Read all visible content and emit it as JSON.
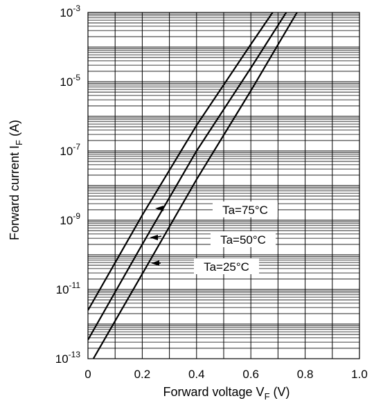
{
  "chart_data": {
    "type": "line",
    "title": "",
    "xlabel": "Forward voltage",
    "xlabel_symbol": "V",
    "xlabel_sub": "F",
    "xlabel_unit": "(V)",
    "ylabel": "Forward current",
    "ylabel_symbol": "I",
    "ylabel_sub": "F",
    "ylabel_unit": "(A)",
    "xlim": [
      0,
      1.0
    ],
    "ylim": [
      1e-13,
      0.001
    ],
    "yscale": "log",
    "grid": true,
    "x_ticks": [
      "0",
      "0.2",
      "0.4",
      "0.6",
      "0.8",
      "1.0"
    ],
    "y_ticks": [
      {
        "base": "10",
        "exp": "-3"
      },
      {
        "base": "10",
        "exp": "-5"
      },
      {
        "base": "10",
        "exp": "-7"
      },
      {
        "base": "10",
        "exp": "-9"
      },
      {
        "base": "10",
        "exp": "-11"
      },
      {
        "base": "10",
        "exp": "-13"
      }
    ],
    "series": [
      {
        "name": "Ta=75°C",
        "x": [
          0.0,
          0.2,
          0.4,
          0.6,
          0.68
        ],
        "y": [
          2.5e-12,
          1.4e-09,
          5.5e-07,
          0.00012,
          0.001
        ]
      },
      {
        "name": "Ta=50°C",
        "x": [
          0.0,
          0.2,
          0.4,
          0.6,
          0.73
        ],
        "y": [
          3.5e-13,
          2e-10,
          1e-07,
          2.5e-05,
          0.001
        ]
      },
      {
        "name": "Ta=25°C",
        "x": [
          0.02,
          0.2,
          0.4,
          0.6,
          0.77
        ],
        "y": [
          1e-13,
          2.8e-11,
          1.5e-08,
          5.5e-06,
          0.001
        ]
      }
    ]
  }
}
